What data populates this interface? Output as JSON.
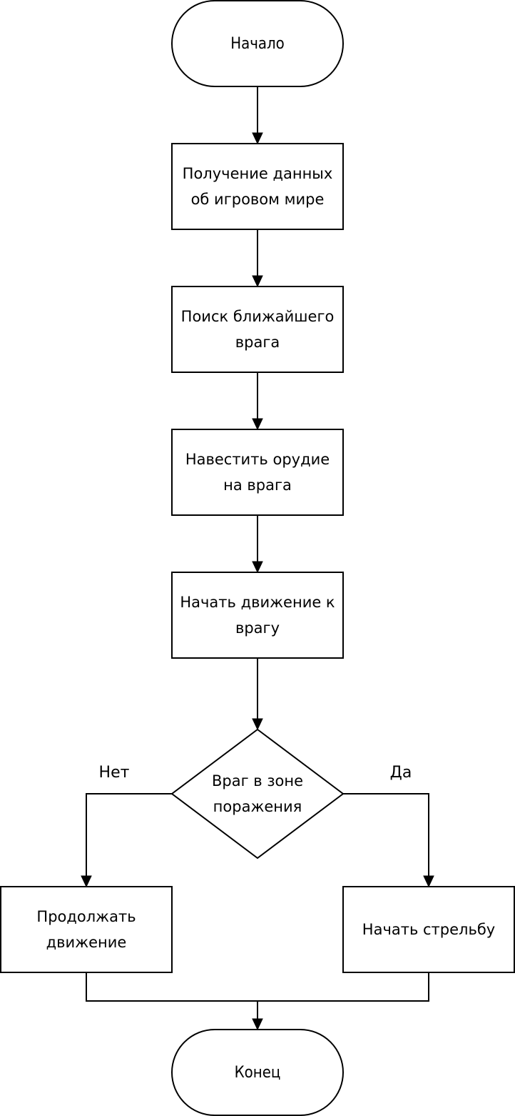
{
  "flowchart": {
    "start": "Начало",
    "steps": [
      "Получение данных об игровом мире",
      "Поиск ближайшего врага",
      "Навестить орудие на врага",
      "Начать движение к врагу"
    ],
    "decision": "Враг в зоне поражения",
    "branch_no": {
      "label": "Нет",
      "action": "Продолжать движение"
    },
    "branch_yes": {
      "label": "Да",
      "action": "Начать стрельбу"
    },
    "end": "Конец"
  }
}
